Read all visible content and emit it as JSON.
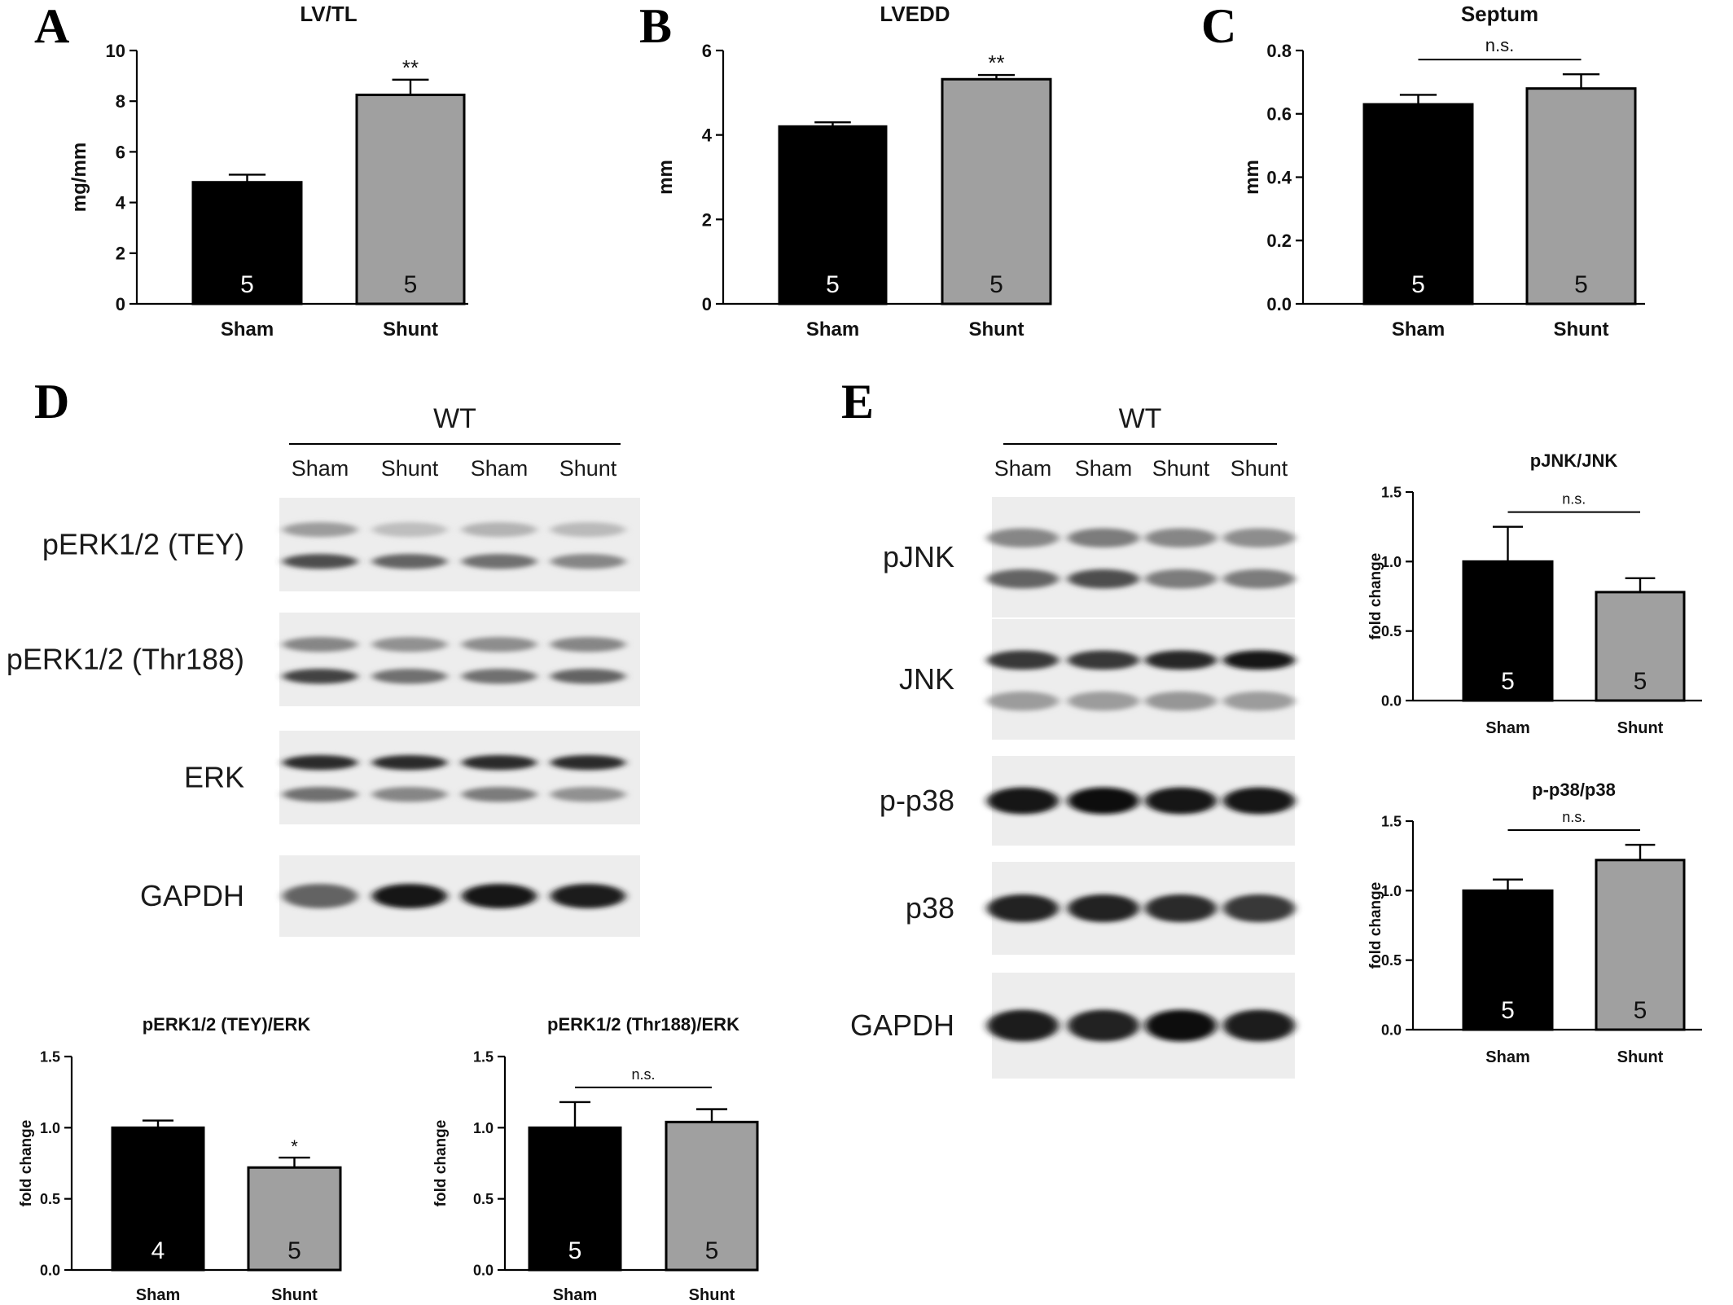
{
  "panels": {
    "A": "A",
    "B": "B",
    "C": "C",
    "D": "D",
    "E": "E"
  },
  "colors": {
    "sham": "#000000",
    "shunt": "#a0a0a0"
  },
  "chart_data": [
    {
      "id": "A",
      "type": "bar",
      "title": "LV/TL",
      "categories": [
        "Sham",
        "Shunt"
      ],
      "values": [
        4.8,
        8.25
      ],
      "errors": [
        0.3,
        0.6
      ],
      "n": [
        "5",
        "5"
      ],
      "ylabel": "mg/mm",
      "ylim": [
        0,
        10
      ],
      "yticks": [
        "0",
        "2",
        "4",
        "6",
        "8",
        "10"
      ],
      "annotations": [
        "",
        "**"
      ],
      "bracket": ""
    },
    {
      "id": "B",
      "type": "bar",
      "title": "LVEDD",
      "categories": [
        "Sham",
        "Shunt"
      ],
      "values": [
        4.2,
        5.32
      ],
      "errors": [
        0.1,
        0.1
      ],
      "n": [
        "5",
        "5"
      ],
      "ylabel": "mm",
      "ylim": [
        0,
        6
      ],
      "yticks": [
        "0",
        "2",
        "4",
        "6"
      ],
      "annotations": [
        "",
        "**"
      ],
      "bracket": ""
    },
    {
      "id": "C",
      "type": "bar",
      "title": "Septum",
      "categories": [
        "Sham",
        "Shunt"
      ],
      "values": [
        0.63,
        0.68
      ],
      "errors": [
        0.03,
        0.045
      ],
      "n": [
        "5",
        "5"
      ],
      "ylabel": "mm",
      "ylim": [
        0,
        0.8
      ],
      "yticks": [
        "0.0",
        "0.2",
        "0.4",
        "0.6",
        "0.8"
      ],
      "annotations": [
        "",
        ""
      ],
      "bracket": "n.s."
    },
    {
      "id": "D1",
      "type": "bar",
      "title": "pERK1/2 (TEY)/ERK",
      "categories": [
        "Sham",
        "Shunt"
      ],
      "values": [
        1.0,
        0.72
      ],
      "errors": [
        0.05,
        0.07
      ],
      "n": [
        "4",
        "5"
      ],
      "ylabel": "fold change",
      "ylim": [
        0,
        1.5
      ],
      "yticks": [
        "0.0",
        "0.5",
        "1.0",
        "1.5"
      ],
      "annotations": [
        "",
        "*"
      ],
      "bracket": ""
    },
    {
      "id": "D2",
      "type": "bar",
      "title": "pERK1/2 (Thr188)/ERK",
      "categories": [
        "Sham",
        "Shunt"
      ],
      "values": [
        1.0,
        1.04
      ],
      "errors": [
        0.18,
        0.09
      ],
      "n": [
        "5",
        "5"
      ],
      "ylabel": "fold change",
      "ylim": [
        0,
        1.5
      ],
      "yticks": [
        "0.0",
        "0.5",
        "1.0",
        "1.5"
      ],
      "annotations": [
        "",
        ""
      ],
      "bracket": "n.s."
    },
    {
      "id": "E1",
      "type": "bar",
      "title": "pJNK/JNK",
      "categories": [
        "Sham",
        "Shunt"
      ],
      "values": [
        1.0,
        0.78
      ],
      "errors": [
        0.25,
        0.1
      ],
      "n": [
        "5",
        "5"
      ],
      "ylabel": "fold change",
      "ylim": [
        0,
        1.5
      ],
      "yticks": [
        "0.0",
        "0.5",
        "1.0",
        "1.5"
      ],
      "annotations": [
        "",
        ""
      ],
      "bracket": "n.s."
    },
    {
      "id": "E2",
      "type": "bar",
      "title": "p-p38/p38",
      "categories": [
        "Sham",
        "Shunt"
      ],
      "values": [
        1.0,
        1.22
      ],
      "errors": [
        0.08,
        0.11
      ],
      "n": [
        "5",
        "5"
      ],
      "ylabel": "fold change",
      "ylim": [
        0,
        1.5
      ],
      "yticks": [
        "0.0",
        "0.5",
        "1.0",
        "1.5"
      ],
      "annotations": [
        "",
        ""
      ],
      "bracket": "n.s."
    }
  ],
  "blots": {
    "D": {
      "group": "WT",
      "lanes": [
        "Sham",
        "Shunt",
        "Sham",
        "Shunt"
      ],
      "rows": [
        {
          "label": "pERK1/2 (TEY)",
          "bands": [
            [
              0.35,
              0.7,
              0.2,
              0.6,
              0.25,
              0.55,
              0.22,
              0.45
            ]
          ]
        },
        {
          "label": "pERK1/2 (Thr188)",
          "bands": [
            [
              0.45,
              0.75,
              0.4,
              0.55,
              0.42,
              0.55,
              0.45,
              0.6
            ]
          ]
        },
        {
          "label": "ERK",
          "bands": [
            [
              0.85,
              0.55,
              0.85,
              0.45,
              0.85,
              0.5,
              0.85,
              0.4
            ]
          ]
        },
        {
          "label": "GAPDH",
          "bands": [
            [
              0.6,
              0.0,
              0.95,
              0.0,
              0.95,
              0.0,
              0.92,
              0.0
            ]
          ]
        }
      ]
    },
    "E": {
      "group": "WT",
      "lanes": [
        "Sham",
        "Sham",
        "Shunt",
        "Shunt"
      ],
      "rows": [
        {
          "label": "pJNK",
          "bands": [
            [
              0.45,
              0.6,
              0.5,
              0.7,
              0.45,
              0.5,
              0.42,
              0.5
            ]
          ]
        },
        {
          "label": "JNK",
          "bands": [
            [
              0.8,
              0.35,
              0.8,
              0.35,
              0.88,
              0.38,
              0.95,
              0.35
            ]
          ]
        },
        {
          "label": "p-p38",
          "bands": [
            [
              0.95,
              0.0,
              0.98,
              0.0,
              0.95,
              0.0,
              0.95,
              0.0
            ]
          ]
        },
        {
          "label": "p38",
          "bands": [
            [
              0.9,
              0.0,
              0.9,
              0.0,
              0.85,
              0.0,
              0.8,
              0.0
            ]
          ]
        },
        {
          "label": "GAPDH",
          "bands": [
            [
              0.92,
              0.0,
              0.9,
              0.0,
              0.97,
              0.0,
              0.92,
              0.0
            ]
          ]
        }
      ]
    }
  }
}
